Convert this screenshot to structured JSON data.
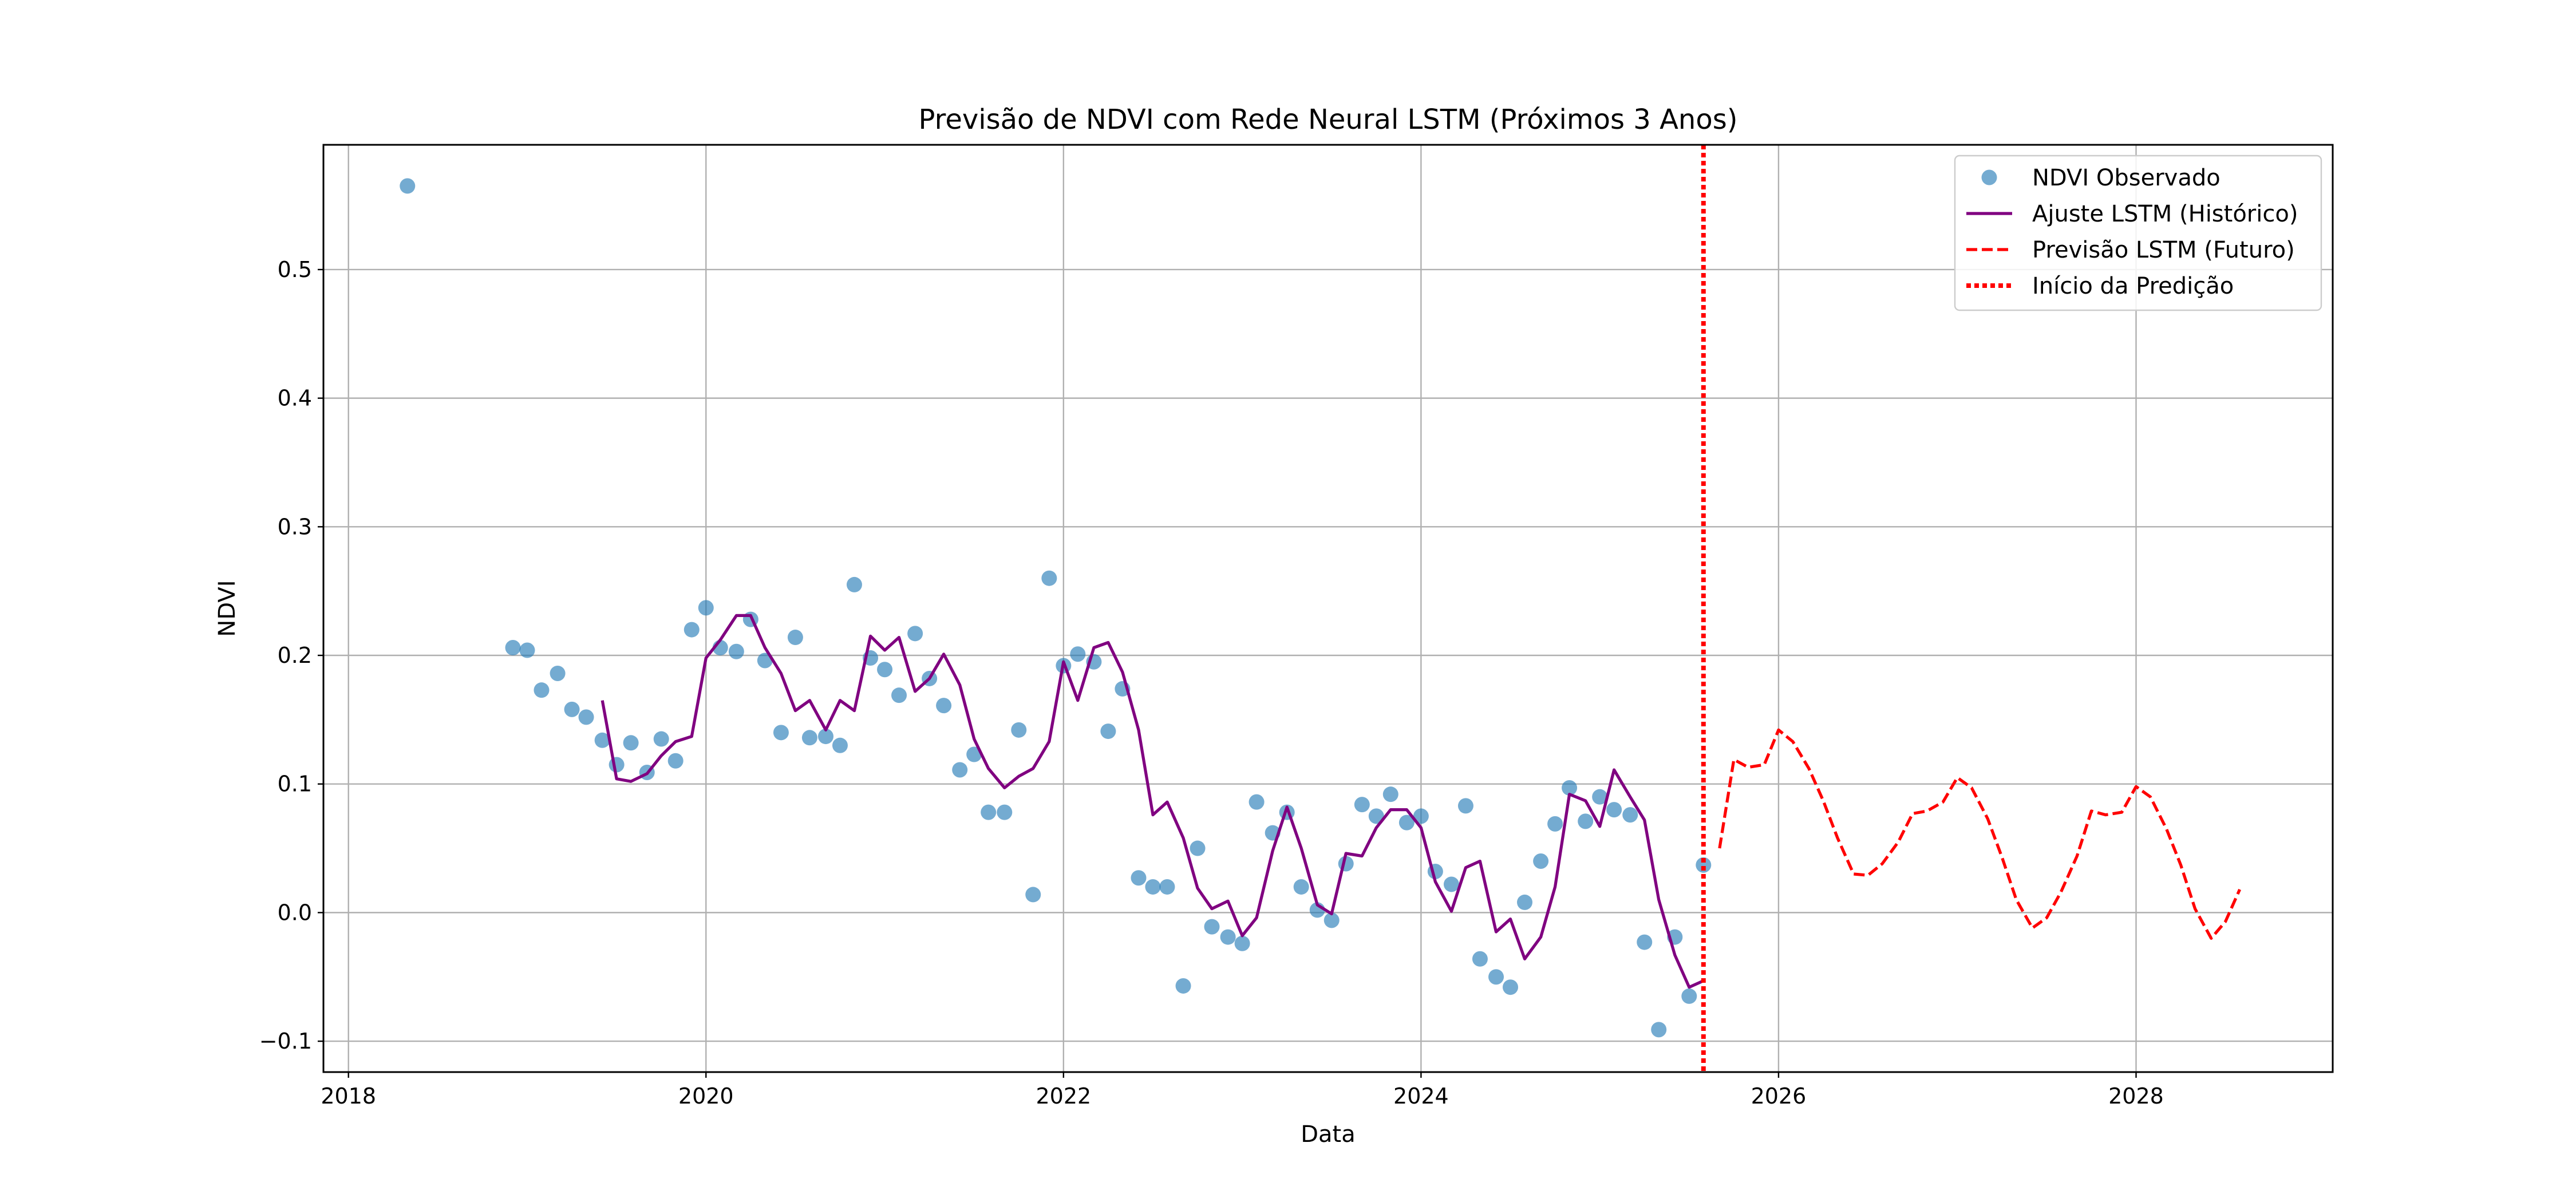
{
  "chart_data": {
    "type": "line",
    "title": "Previsão de NDVI com Rede Neural LSTM (Próximos 3 Anos)",
    "xlabel": "Data",
    "ylabel": "NDVI",
    "xlim": [
      2017.86,
      2029.1
    ],
    "ylim": [
      -0.124,
      0.597
    ],
    "x_ticks": [
      2018,
      2020,
      2022,
      2024,
      2026,
      2028
    ],
    "y_ticks": [
      -0.1,
      0.0,
      0.1,
      0.2,
      0.3,
      0.4,
      0.5
    ],
    "y_tick_labels": [
      "−0.1",
      "0.0",
      "0.1",
      "0.2",
      "0.3",
      "0.4",
      "0.5"
    ],
    "grid": true,
    "legend_position": "top-right",
    "series": [
      {
        "name": "NDVI Observado",
        "kind": "scatter",
        "color": "#1f77b4",
        "points": [
          [
            2018.33,
            0.565
          ],
          [
            2018.92,
            0.206
          ],
          [
            2019.0,
            0.204
          ],
          [
            2019.08,
            0.173
          ],
          [
            2019.17,
            0.186
          ],
          [
            2019.25,
            0.158
          ],
          [
            2019.33,
            0.152
          ],
          [
            2019.42,
            0.134
          ],
          [
            2019.5,
            0.115
          ],
          [
            2019.58,
            0.132
          ],
          [
            2019.67,
            0.109
          ],
          [
            2019.75,
            0.135
          ],
          [
            2019.83,
            0.118
          ],
          [
            2019.92,
            0.22
          ],
          [
            2020.0,
            0.237
          ],
          [
            2020.08,
            0.206
          ],
          [
            2020.17,
            0.203
          ],
          [
            2020.25,
            0.228
          ],
          [
            2020.33,
            0.196
          ],
          [
            2020.42,
            0.14
          ],
          [
            2020.5,
            0.214
          ],
          [
            2020.58,
            0.136
          ],
          [
            2020.67,
            0.137
          ],
          [
            2020.75,
            0.13
          ],
          [
            2020.83,
            0.255
          ],
          [
            2020.92,
            0.198
          ],
          [
            2021.0,
            0.189
          ],
          [
            2021.08,
            0.169
          ],
          [
            2021.17,
            0.217
          ],
          [
            2021.25,
            0.182
          ],
          [
            2021.33,
            0.161
          ],
          [
            2021.42,
            0.111
          ],
          [
            2021.5,
            0.123
          ],
          [
            2021.58,
            0.078
          ],
          [
            2021.67,
            0.078
          ],
          [
            2021.75,
            0.142
          ],
          [
            2021.83,
            0.014
          ],
          [
            2021.92,
            0.26
          ],
          [
            2022.0,
            0.192
          ],
          [
            2022.08,
            0.201
          ],
          [
            2022.17,
            0.195
          ],
          [
            2022.25,
            0.141
          ],
          [
            2022.33,
            0.174
          ],
          [
            2022.42,
            0.027
          ],
          [
            2022.5,
            0.02
          ],
          [
            2022.58,
            0.02
          ],
          [
            2022.67,
            -0.057
          ],
          [
            2022.75,
            0.05
          ],
          [
            2022.83,
            -0.011
          ],
          [
            2022.92,
            -0.019
          ],
          [
            2023.0,
            -0.024
          ],
          [
            2023.08,
            0.086
          ],
          [
            2023.17,
            0.062
          ],
          [
            2023.25,
            0.078
          ],
          [
            2023.33,
            0.02
          ],
          [
            2023.42,
            0.002
          ],
          [
            2023.5,
            -0.006
          ],
          [
            2023.58,
            0.038
          ],
          [
            2023.67,
            0.084
          ],
          [
            2023.75,
            0.075
          ],
          [
            2023.83,
            0.092
          ],
          [
            2023.92,
            0.07
          ],
          [
            2024.0,
            0.075
          ],
          [
            2024.08,
            0.032
          ],
          [
            2024.17,
            0.022
          ],
          [
            2024.25,
            0.083
          ],
          [
            2024.33,
            -0.036
          ],
          [
            2024.42,
            -0.05
          ],
          [
            2024.5,
            -0.058
          ],
          [
            2024.58,
            0.008
          ],
          [
            2024.67,
            0.04
          ],
          [
            2024.75,
            0.069
          ],
          [
            2024.83,
            0.097
          ],
          [
            2024.92,
            0.071
          ],
          [
            2025.0,
            0.09
          ],
          [
            2025.08,
            0.08
          ],
          [
            2025.17,
            0.076
          ],
          [
            2025.25,
            -0.023
          ],
          [
            2025.33,
            -0.091
          ],
          [
            2025.42,
            -0.019
          ],
          [
            2025.5,
            -0.065
          ],
          [
            2025.58,
            0.037
          ]
        ]
      },
      {
        "name": "Ajuste LSTM (Histórico)",
        "kind": "line",
        "color": "#800080",
        "points": [
          [
            2019.42,
            0.165
          ],
          [
            2019.5,
            0.104
          ],
          [
            2019.58,
            0.102
          ],
          [
            2019.67,
            0.108
          ],
          [
            2019.75,
            0.122
          ],
          [
            2019.83,
            0.133
          ],
          [
            2019.92,
            0.137
          ],
          [
            2020.0,
            0.198
          ],
          [
            2020.08,
            0.212
          ],
          [
            2020.17,
            0.231
          ],
          [
            2020.25,
            0.231
          ],
          [
            2020.33,
            0.206
          ],
          [
            2020.42,
            0.186
          ],
          [
            2020.5,
            0.157
          ],
          [
            2020.58,
            0.165
          ],
          [
            2020.67,
            0.142
          ],
          [
            2020.75,
            0.165
          ],
          [
            2020.83,
            0.157
          ],
          [
            2020.92,
            0.215
          ],
          [
            2021.0,
            0.204
          ],
          [
            2021.08,
            0.214
          ],
          [
            2021.17,
            0.172
          ],
          [
            2021.25,
            0.182
          ],
          [
            2021.33,
            0.201
          ],
          [
            2021.42,
            0.177
          ],
          [
            2021.5,
            0.135
          ],
          [
            2021.58,
            0.112
          ],
          [
            2021.67,
            0.097
          ],
          [
            2021.75,
            0.106
          ],
          [
            2021.83,
            0.112
          ],
          [
            2021.92,
            0.133
          ],
          [
            2022.0,
            0.195
          ],
          [
            2022.08,
            0.165
          ],
          [
            2022.17,
            0.206
          ],
          [
            2022.25,
            0.21
          ],
          [
            2022.33,
            0.187
          ],
          [
            2022.42,
            0.142
          ],
          [
            2022.5,
            0.076
          ],
          [
            2022.58,
            0.086
          ],
          [
            2022.67,
            0.058
          ],
          [
            2022.75,
            0.019
          ],
          [
            2022.83,
            0.003
          ],
          [
            2022.92,
            0.009
          ],
          [
            2023.0,
            -0.018
          ],
          [
            2023.08,
            -0.004
          ],
          [
            2023.17,
            0.048
          ],
          [
            2023.25,
            0.082
          ],
          [
            2023.33,
            0.05
          ],
          [
            2023.42,
            0.006
          ],
          [
            2023.5,
            -0.001
          ],
          [
            2023.58,
            0.046
          ],
          [
            2023.67,
            0.044
          ],
          [
            2023.75,
            0.066
          ],
          [
            2023.83,
            0.08
          ],
          [
            2023.92,
            0.08
          ],
          [
            2024.0,
            0.066
          ],
          [
            2024.08,
            0.024
          ],
          [
            2024.17,
            0.001
          ],
          [
            2024.25,
            0.035
          ],
          [
            2024.33,
            0.04
          ],
          [
            2024.42,
            -0.015
          ],
          [
            2024.5,
            -0.005
          ],
          [
            2024.58,
            -0.036
          ],
          [
            2024.67,
            -0.019
          ],
          [
            2024.75,
            0.02
          ],
          [
            2024.83,
            0.092
          ],
          [
            2024.92,
            0.087
          ],
          [
            2025.0,
            0.067
          ],
          [
            2025.08,
            0.111
          ],
          [
            2025.17,
            0.09
          ],
          [
            2025.25,
            0.072
          ],
          [
            2025.33,
            0.01
          ],
          [
            2025.42,
            -0.033
          ],
          [
            2025.5,
            -0.058
          ],
          [
            2025.58,
            -0.053
          ]
        ]
      },
      {
        "name": "Previsão LSTM (Futuro)",
        "kind": "dashed-line",
        "color": "#ff0000",
        "points": [
          [
            2025.67,
            0.05
          ],
          [
            2025.75,
            0.119
          ],
          [
            2025.83,
            0.113
          ],
          [
            2025.92,
            0.115
          ],
          [
            2026.0,
            0.142
          ],
          [
            2026.08,
            0.133
          ],
          [
            2026.17,
            0.112
          ],
          [
            2026.25,
            0.087
          ],
          [
            2026.33,
            0.058
          ],
          [
            2026.42,
            0.03
          ],
          [
            2026.5,
            0.029
          ],
          [
            2026.58,
            0.038
          ],
          [
            2026.67,
            0.055
          ],
          [
            2026.75,
            0.077
          ],
          [
            2026.83,
            0.079
          ],
          [
            2026.92,
            0.086
          ],
          [
            2027.0,
            0.105
          ],
          [
            2027.08,
            0.097
          ],
          [
            2027.17,
            0.073
          ],
          [
            2027.25,
            0.043
          ],
          [
            2027.33,
            0.01
          ],
          [
            2027.42,
            -0.012
          ],
          [
            2027.5,
            -0.004
          ],
          [
            2027.58,
            0.016
          ],
          [
            2027.67,
            0.044
          ],
          [
            2027.75,
            0.079
          ],
          [
            2027.83,
            0.076
          ],
          [
            2027.92,
            0.078
          ],
          [
            2028.0,
            0.098
          ],
          [
            2028.08,
            0.09
          ],
          [
            2028.17,
            0.065
          ],
          [
            2028.25,
            0.037
          ],
          [
            2028.33,
            0.003
          ],
          [
            2028.42,
            -0.02
          ],
          [
            2028.5,
            -0.007
          ],
          [
            2028.58,
            0.018
          ]
        ]
      },
      {
        "name": "Início da Predição",
        "kind": "vertical-line",
        "color": "#ff0000",
        "x": 2025.58
      }
    ]
  }
}
